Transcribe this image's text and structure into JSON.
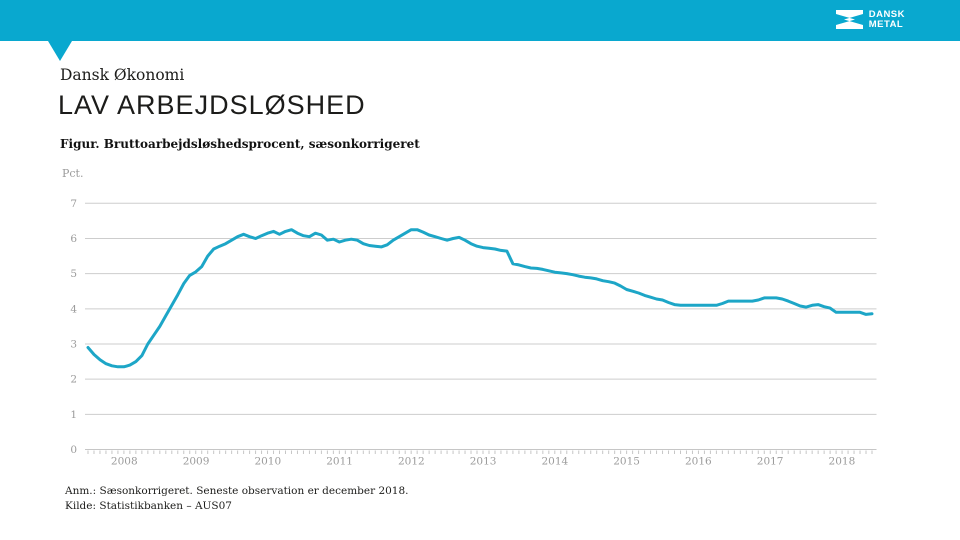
{
  "brand": {
    "accent": "#09a8cf",
    "logo_line1": "DANSK",
    "logo_line2": "METAL"
  },
  "header": {
    "kicker": "Dansk Økonomi",
    "title": "LAV ARBEJDSLØSHED",
    "figure_caption": "Figur. Bruttoarbejdsløshedsprocent, sæsonkorrigeret",
    "unit_label": "Pct."
  },
  "chart_data": {
    "type": "line",
    "title": "Bruttoarbejdsløshedsprocent, sæsonkorrigeret",
    "ylabel": "Pct.",
    "xlabel": "",
    "ylim": [
      0,
      7
    ],
    "yticks": [
      7,
      6,
      5,
      4,
      3,
      2,
      1,
      0
    ],
    "x_year_labels": [
      "2008",
      "2009",
      "2010",
      "2011",
      "2012",
      "2013",
      "2014",
      "2015",
      "2016",
      "2017",
      "2018"
    ],
    "frequency": "monthly",
    "grid": true,
    "legend": false,
    "line_color": "#1da6c7",
    "grid_color": "#cdcdcd",
    "axis_color": "#c6c6c6",
    "axis_text_color": "#9b9b9b",
    "series": [
      {
        "name": "Bruttoarbejdsløshedsprocent, sæsonkorrigeret",
        "values": [
          2.9,
          2.7,
          2.55,
          2.44,
          2.38,
          2.35,
          2.35,
          2.4,
          2.5,
          2.67,
          3.0,
          3.25,
          3.5,
          3.8,
          4.1,
          4.4,
          4.72,
          4.95,
          5.05,
          5.2,
          5.5,
          5.7,
          5.78,
          5.85,
          5.95,
          6.05,
          6.12,
          6.05,
          6.0,
          6.08,
          6.15,
          6.2,
          6.12,
          6.2,
          6.25,
          6.15,
          6.08,
          6.05,
          6.15,
          6.1,
          5.95,
          5.98,
          5.9,
          5.95,
          5.98,
          5.95,
          5.85,
          5.8,
          5.78,
          5.76,
          5.82,
          5.95,
          6.05,
          6.15,
          6.25,
          6.25,
          6.18,
          6.1,
          6.05,
          6.0,
          5.95,
          6.0,
          6.03,
          5.95,
          5.85,
          5.78,
          5.74,
          5.72,
          5.7,
          5.66,
          5.64,
          5.28,
          5.25,
          5.2,
          5.16,
          5.15,
          5.12,
          5.08,
          5.04,
          5.02,
          5.0,
          4.97,
          4.93,
          4.9,
          4.88,
          4.85,
          4.8,
          4.77,
          4.73,
          4.65,
          4.55,
          4.5,
          4.45,
          4.38,
          4.33,
          4.28,
          4.25,
          4.18,
          4.12,
          4.1,
          4.1,
          4.1,
          4.1,
          4.1,
          4.1,
          4.1,
          4.15,
          4.22,
          4.22,
          4.22,
          4.22,
          4.22,
          4.25,
          4.31,
          4.31,
          4.31,
          4.28,
          4.22,
          4.15,
          4.08,
          4.05,
          4.1,
          4.12,
          4.06,
          4.02,
          3.9,
          3.9,
          3.9,
          3.9,
          3.9,
          3.84,
          3.86
        ]
      }
    ]
  },
  "footer": {
    "note": "Anm.: Sæsonkorrigeret. Seneste observation er december 2018.",
    "source": "Kilde: Statistikbanken – AUS07"
  }
}
